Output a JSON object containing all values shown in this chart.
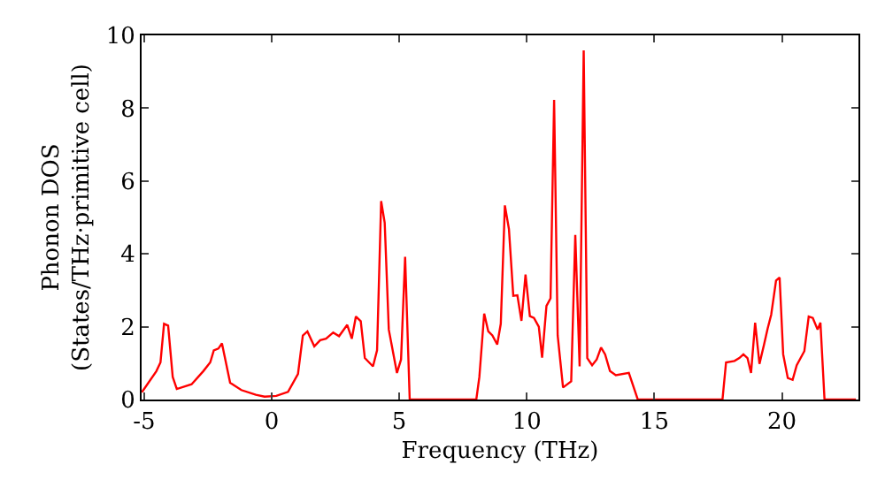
{
  "chart_data": {
    "type": "line",
    "xlabel": "Frequency (THz)",
    "ylabel": "Phonon DOS\n(States/THz·primitive cell)",
    "xlim": [
      -5.1,
      23
    ],
    "ylim": [
      0,
      10
    ],
    "xticks": [
      -5,
      0,
      5,
      10,
      15,
      20
    ],
    "yticks": [
      0,
      2,
      4,
      6,
      8,
      10
    ],
    "marker": "none",
    "line_style": "solid",
    "series": [
      {
        "color": "#ff0000",
        "x": [
          -5.09,
          -4.52,
          -4.36,
          -4.22,
          -4.06,
          -3.88,
          -3.72,
          -3.14,
          -2.68,
          -2.41,
          -2.27,
          -2.09,
          -1.95,
          -1.63,
          -1.19,
          -0.62,
          -0.28,
          0.18,
          0.64,
          1.03,
          1.22,
          1.4,
          1.67,
          1.9,
          2.13,
          2.41,
          2.64,
          2.96,
          3.14,
          3.3,
          3.49,
          3.65,
          3.97,
          4.13,
          4.29,
          4.43,
          4.59,
          4.91,
          5.07,
          5.23,
          5.41,
          8.02,
          8.14,
          8.33,
          8.49,
          8.65,
          8.84,
          8.98,
          9.14,
          9.3,
          9.47,
          9.63,
          9.79,
          9.95,
          10.12,
          10.28,
          10.47,
          10.6,
          10.77,
          10.93,
          11.07,
          11.21,
          11.42,
          11.74,
          11.9,
          12.07,
          12.23,
          12.37,
          12.56,
          12.74,
          12.91,
          13.07,
          13.26,
          13.49,
          14.0,
          14.35,
          16.05,
          17.67,
          17.81,
          18.14,
          18.33,
          18.49,
          18.65,
          18.79,
          18.95,
          19.12,
          19.3,
          19.44,
          19.58,
          19.77,
          19.91,
          20.05,
          20.23,
          20.42,
          20.58,
          20.88,
          21.05,
          21.21,
          21.4,
          21.51,
          21.67,
          22.9
        ],
        "values": [
          0.2,
          0.78,
          1.02,
          2.08,
          2.03,
          0.62,
          0.29,
          0.42,
          0.78,
          1.02,
          1.35,
          1.4,
          1.54,
          0.46,
          0.26,
          0.13,
          0.08,
          0.1,
          0.21,
          0.7,
          1.76,
          1.87,
          1.46,
          1.63,
          1.67,
          1.84,
          1.74,
          2.05,
          1.67,
          2.28,
          2.15,
          1.14,
          0.91,
          1.35,
          5.45,
          4.85,
          1.92,
          0.73,
          1.1,
          3.92,
          0,
          0,
          0.62,
          2.36,
          1.87,
          1.76,
          1.51,
          2.08,
          5.33,
          4.68,
          2.85,
          2.86,
          2.16,
          3.43,
          2.29,
          2.24,
          2.0,
          1.15,
          2.57,
          2.78,
          8.23,
          1.76,
          0.33,
          0.5,
          4.52,
          0.91,
          9.59,
          1.14,
          0.94,
          1.1,
          1.43,
          1.24,
          0.78,
          0.67,
          0.73,
          0,
          0,
          0,
          1.02,
          1.06,
          1.14,
          1.24,
          1.14,
          0.73,
          2.11,
          0.98,
          1.51,
          1.95,
          2.33,
          3.27,
          3.35,
          1.24,
          0.59,
          0.54,
          0.94,
          1.33,
          2.28,
          2.24,
          1.92,
          2.11,
          0,
          0
        ]
      }
    ]
  }
}
